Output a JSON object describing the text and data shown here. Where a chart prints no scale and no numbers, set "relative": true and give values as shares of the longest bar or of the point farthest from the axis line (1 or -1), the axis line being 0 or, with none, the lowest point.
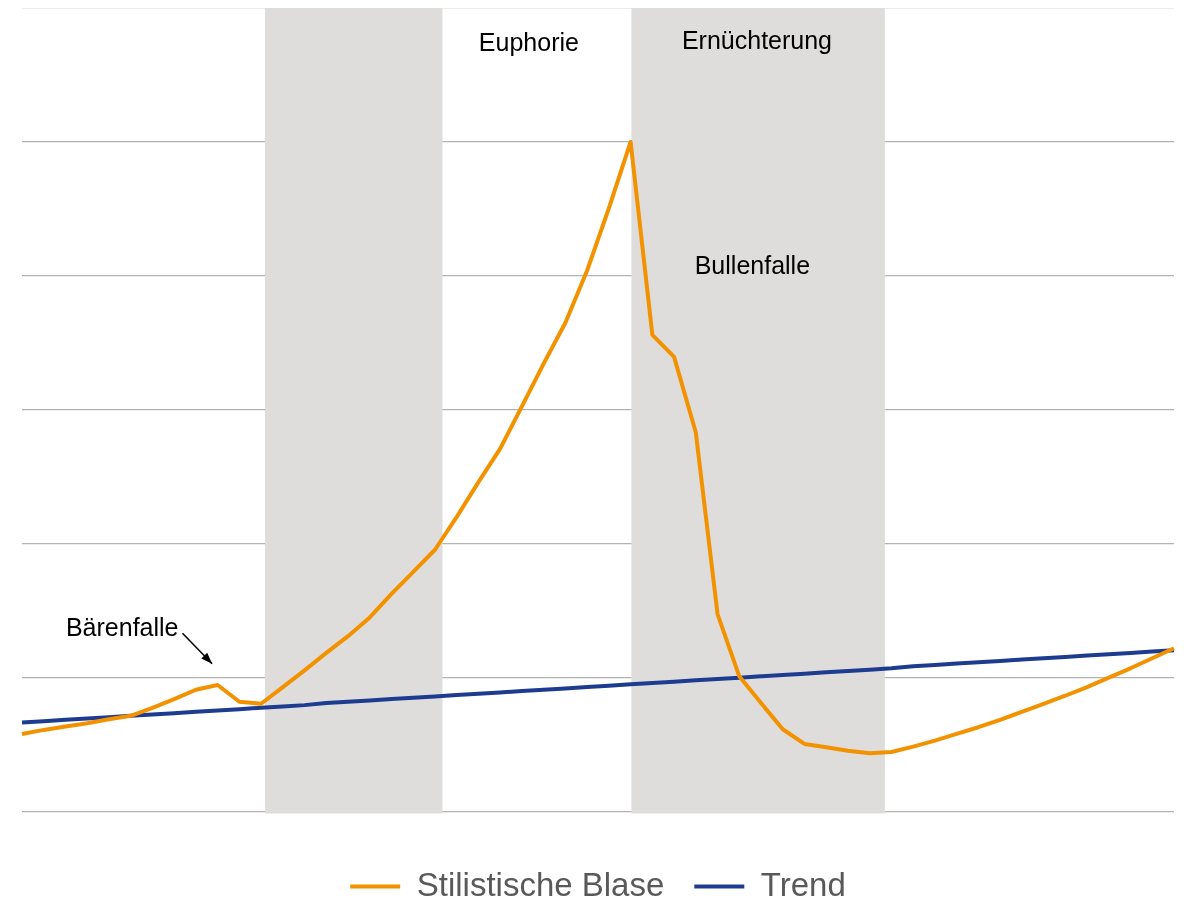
{
  "chart_data": {
    "type": "line",
    "relative": true,
    "grid": "y",
    "legend": "bottom",
    "marker": "none",
    "categories": [
      null,
      null,
      null,
      null,
      null,
      null,
      null,
      null,
      null,
      null,
      null,
      null,
      null,
      null,
      null,
      null,
      null,
      null,
      null,
      null,
      null,
      null,
      null,
      null,
      null,
      null,
      null,
      null,
      null,
      null,
      null,
      null,
      null,
      null,
      null,
      null,
      null,
      null,
      null,
      null,
      null,
      null,
      null,
      null,
      null,
      null,
      null,
      null,
      null,
      null,
      null,
      null,
      null,
      null
    ],
    "series": [
      {
        "name": "Stilistische Blase",
        "color": "#f39200",
        "values": [
          0.116,
          0.122,
          0.127,
          0.132,
          0.138,
          0.143,
          0.155,
          0.168,
          0.182,
          0.189,
          0.164,
          0.161,
          0.186,
          0.211,
          0.237,
          0.262,
          0.29,
          0.325,
          0.358,
          0.391,
          0.44,
          0.492,
          0.542,
          0.605,
          0.669,
          0.73,
          0.808,
          0.901,
          1.0,
          0.712,
          0.679,
          0.566,
          0.295,
          0.202,
          0.162,
          0.123,
          0.101,
          0.096,
          0.091,
          0.087,
          0.089,
          0.097,
          0.106,
          0.116,
          0.126,
          0.137,
          0.149,
          0.161,
          0.173,
          0.186,
          0.2,
          0.214,
          0.229,
          0.244
        ]
      },
      {
        "name": "Trend",
        "color": "#1d3c8f",
        "values": [
          0.133,
          0.135,
          0.137,
          0.139,
          0.141,
          0.143,
          0.145,
          0.147,
          0.149,
          0.151,
          0.153,
          0.155,
          0.157,
          0.159,
          0.162,
          0.164,
          0.166,
          0.168,
          0.17,
          0.172,
          0.174,
          0.176,
          0.178,
          0.18,
          0.182,
          0.184,
          0.186,
          0.188,
          0.19,
          0.192,
          0.194,
          0.196,
          0.198,
          0.2,
          0.202,
          0.204,
          0.206,
          0.208,
          0.21,
          0.212,
          0.214,
          0.217,
          0.219,
          0.221,
          0.223,
          0.225,
          0.227,
          0.229,
          0.231,
          0.233,
          0.235,
          0.237,
          0.239,
          0.241
        ]
      }
    ],
    "annotations": [
      "Euphorie",
      "Ernüchterung",
      "Bullenfalle",
      "Bärenfalle"
    ]
  }
}
